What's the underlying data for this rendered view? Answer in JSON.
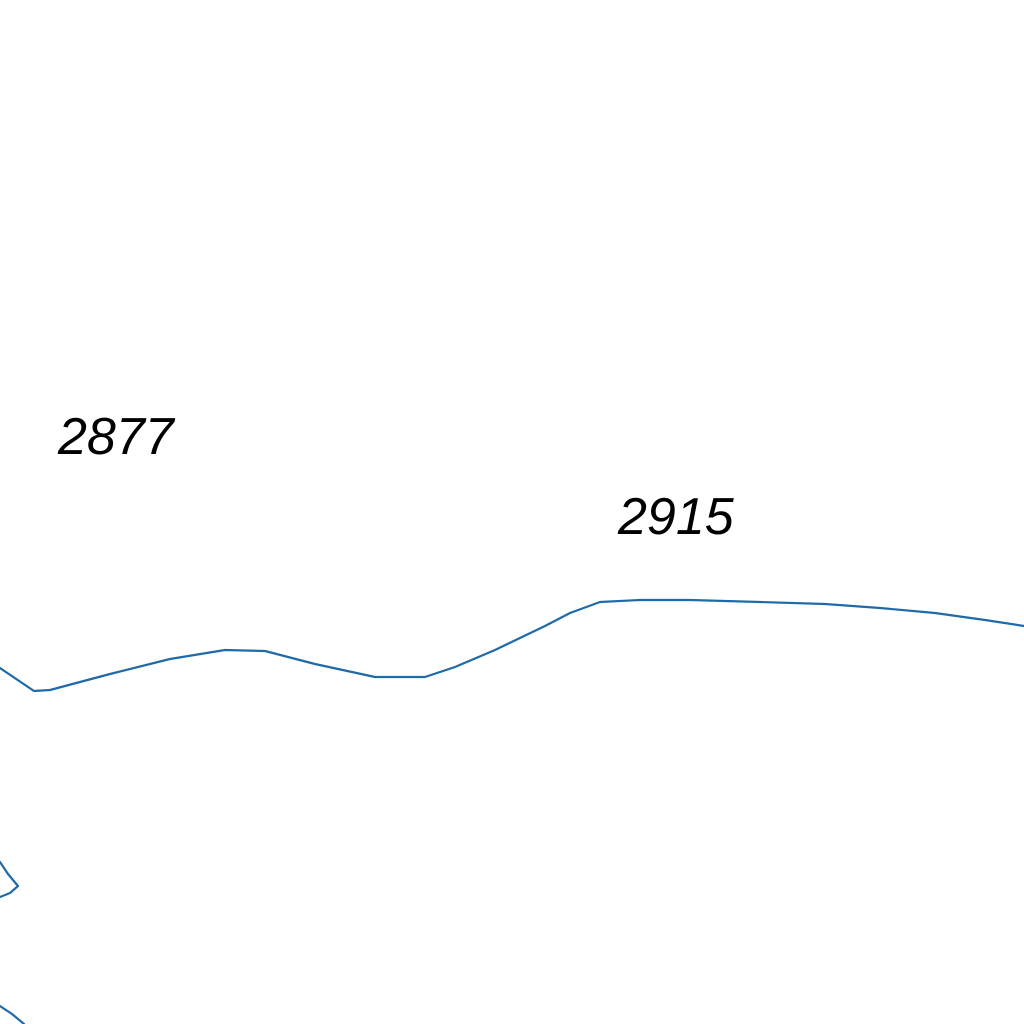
{
  "map": {
    "colors": {
      "background": "#ffffff",
      "contour": "#1f6aa8",
      "label": "#000000"
    },
    "elevation_labels": [
      {
        "value": "2877"
      },
      {
        "value": "2915"
      }
    ],
    "features": [
      "contour-line",
      "contour-fragment",
      "contour-fragment"
    ]
  }
}
